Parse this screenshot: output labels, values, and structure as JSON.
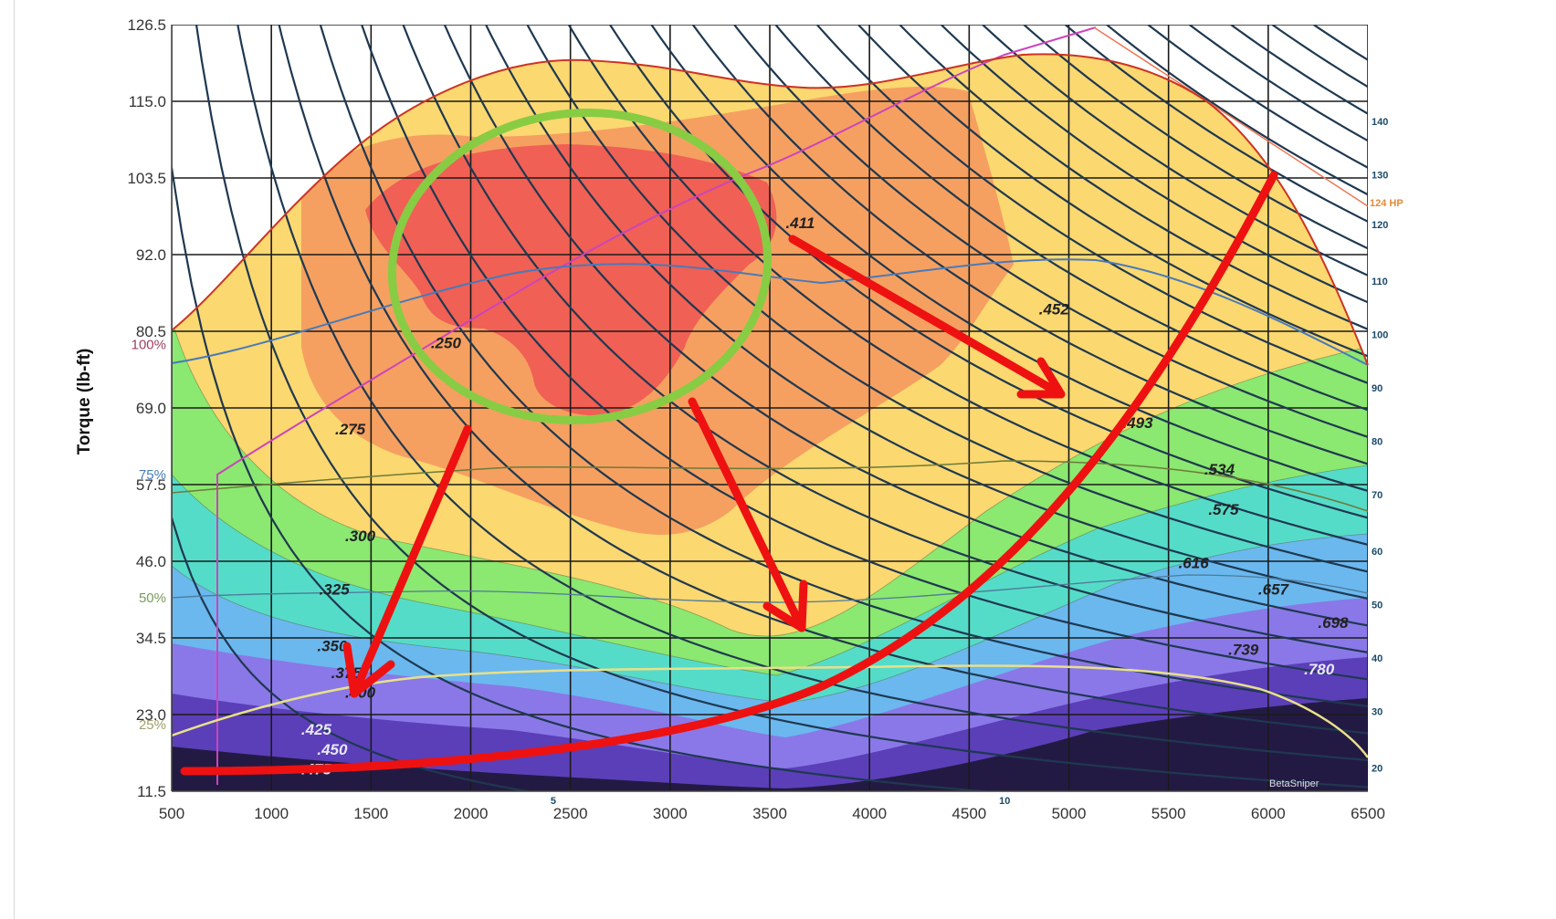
{
  "chart_data": {
    "type": "heatmap",
    "ylabel": "Torque (lb-ft)",
    "xlabel": "",
    "xlim": [
      500,
      6500
    ],
    "ylim": [
      11.5,
      126.5
    ],
    "x_ticks": [
      "500",
      "1000",
      "1500",
      "2000",
      "2500",
      "3000",
      "3500",
      "4000",
      "4500",
      "5000",
      "5500",
      "6000",
      "6500"
    ],
    "y_ticks": [
      "11.5",
      "23.0",
      "34.5",
      "46.0",
      "57.5",
      "69.0",
      "80.5",
      "92.0",
      "103.5",
      "115.0",
      "126.5"
    ],
    "load_percent_labels": [
      {
        "label": "100%",
        "torque": 78.5
      },
      {
        "label": "75%",
        "torque": 59
      },
      {
        "label": "50%",
        "torque": 40.5
      },
      {
        "label": "25%",
        "torque": 21.5
      }
    ],
    "hp_labels": [
      {
        "label": "140",
        "torque": 112
      },
      {
        "label": "130",
        "torque": 104
      },
      {
        "label": "120",
        "torque": 96.5
      },
      {
        "label": "110",
        "torque": 88
      },
      {
        "label": "100",
        "torque": 80
      },
      {
        "label": "90",
        "torque": 72
      },
      {
        "label": "80",
        "torque": 64
      },
      {
        "label": "70",
        "torque": 56
      },
      {
        "label": "60",
        "torque": 47.5
      },
      {
        "label": "50",
        "torque": 39.5
      },
      {
        "label": "40",
        "torque": 31.5
      },
      {
        "label": "30",
        "torque": 23.5
      },
      {
        "label": "20",
        "torque": 15
      }
    ],
    "max_hp_label": "124 HP",
    "bottom_hp_labels": [
      {
        "label": "5",
        "rpm": 2400
      },
      {
        "label": "10",
        "rpm": 4650
      }
    ],
    "bsfc_labels": [
      {
        "label": ".250",
        "rpm": 1800,
        "torque": 78
      },
      {
        "label": ".275",
        "rpm": 1320,
        "torque": 65
      },
      {
        "label": ".300",
        "rpm": 1370,
        "torque": 49
      },
      {
        "label": ".325",
        "rpm": 1240,
        "torque": 41
      },
      {
        "label": ".350",
        "rpm": 1230,
        "torque": 32.5
      },
      {
        "label": ".375",
        "rpm": 1300,
        "torque": 28.5
      },
      {
        "label": ".400",
        "rpm": 1370,
        "torque": 25.5
      },
      {
        "label": ".425",
        "rpm": 1150,
        "torque": 20
      },
      {
        "label": ".450",
        "rpm": 1230,
        "torque": 17
      },
      {
        "label": ".475",
        "rpm": 1150,
        "torque": 14
      },
      {
        "label": ".411",
        "rpm": 3580,
        "torque": 96
      },
      {
        "label": ".452",
        "rpm": 4850,
        "torque": 83
      },
      {
        "label": ".493",
        "rpm": 5270,
        "torque": 66
      },
      {
        "label": ".534",
        "rpm": 5680,
        "torque": 59
      },
      {
        "label": ".575",
        "rpm": 5700,
        "torque": 53
      },
      {
        "label": ".616",
        "rpm": 5550,
        "torque": 45
      },
      {
        "label": ".657",
        "rpm": 5950,
        "torque": 41
      },
      {
        "label": ".698",
        "rpm": 6250,
        "torque": 36
      },
      {
        "label": ".739",
        "rpm": 5800,
        "torque": 32
      },
      {
        "label": ".780",
        "rpm": 6180,
        "torque": 29
      }
    ],
    "watermark": "BetaSniper",
    "colors": {
      "frame_border": "#cc3322",
      "bsfc_best": "#f06055",
      "bsfc_orange": "#f5a060",
      "bsfc_yellow": "#fbd870",
      "bsfc_green": "#8be870",
      "bsfc_teal": "#55dcc8",
      "bsfc_blue": "#6ab8ee",
      "bsfc_violet": "#8a78e8",
      "bsfc_purple": "#5b3fb8",
      "bsfc_dark": "#231a44",
      "hp_curves": "#1f3850",
      "annotation_red": "#ee1111",
      "annotation_green": "#88cc44",
      "load_line_pink": "#cc44bb",
      "load_line_blue": "#4a7ab8"
    }
  }
}
